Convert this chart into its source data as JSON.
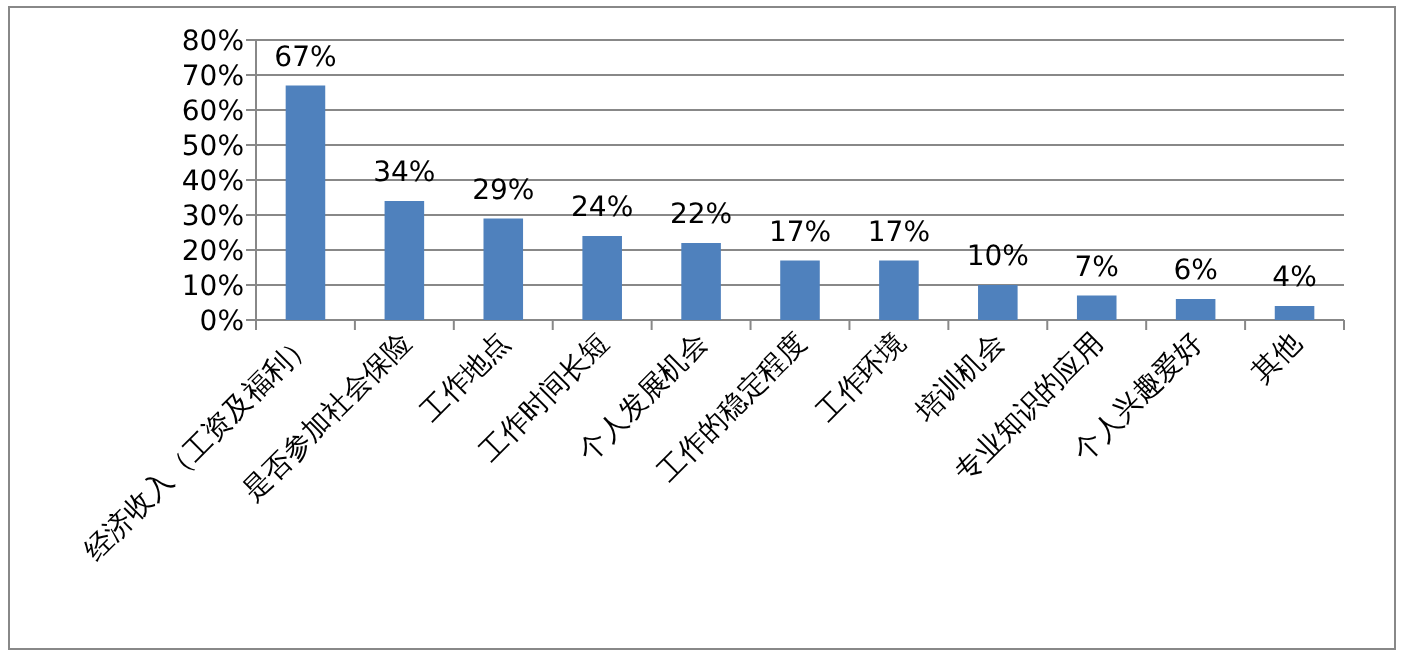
{
  "chart_data": {
    "type": "bar",
    "categories": [
      "经济收入（工资及福利）",
      "是否参加社会保险",
      "工作地点",
      "工作时间长短",
      "个人发展机会",
      "工作的稳定程度",
      "工作环境",
      "培训机会",
      "专业知识的应用",
      "个人兴趣爱好",
      "其他"
    ],
    "values": [
      67,
      34,
      29,
      24,
      22,
      17,
      17,
      10,
      7,
      6,
      4
    ],
    "value_labels": [
      "67%",
      "34%",
      "29%",
      "24%",
      "22%",
      "17%",
      "17%",
      "10%",
      "7%",
      "6%",
      "4%"
    ],
    "color": "#4f81bd",
    "ylim": [
      0,
      80
    ],
    "yticks": [
      {
        "value": 0,
        "label": "0%"
      },
      {
        "value": 10,
        "label": "10%"
      },
      {
        "value": 20,
        "label": "20%"
      },
      {
        "value": 30,
        "label": "30%"
      },
      {
        "value": 40,
        "label": "40%"
      },
      {
        "value": 50,
        "label": "50%"
      },
      {
        "value": 60,
        "label": "60%"
      },
      {
        "value": 70,
        "label": "70%"
      },
      {
        "value": 80,
        "label": "80%"
      }
    ],
    "grid": "y"
  }
}
